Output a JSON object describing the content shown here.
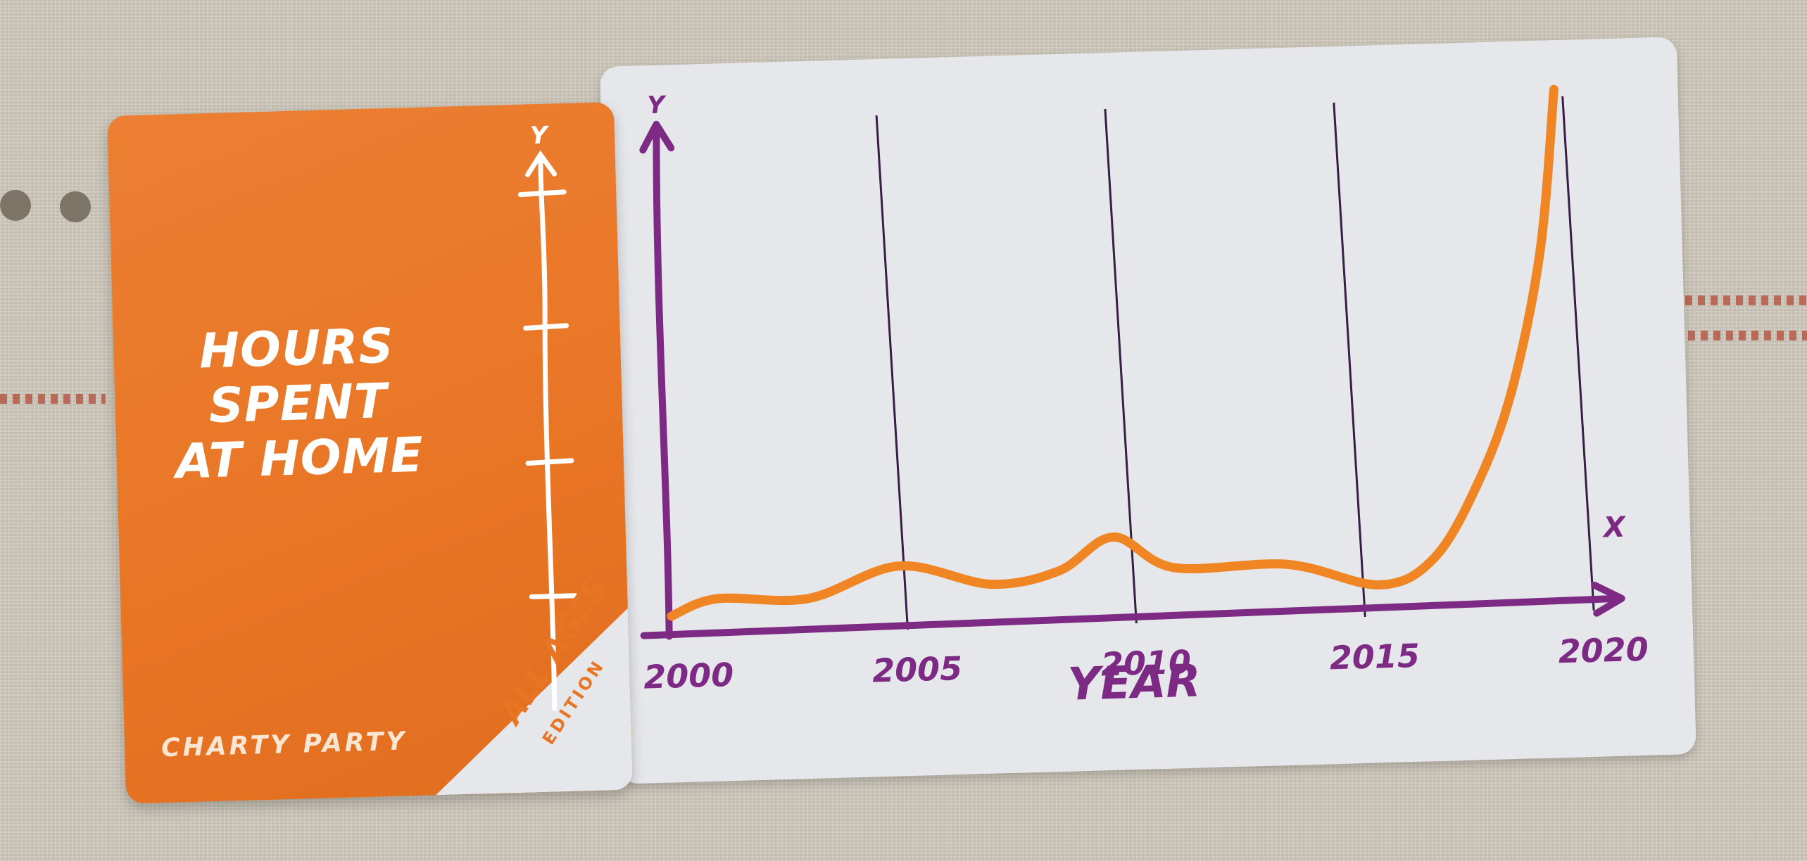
{
  "card": {
    "title_line1": "HOURS SPENT",
    "title_line2": "AT HOME",
    "brand": "CHARTY PARTY",
    "edition_main": "ALL AGES",
    "edition_sub": "EDITION",
    "axis_letter": "Y"
  },
  "chart_data": {
    "type": "line",
    "xlabel": "YEAR",
    "ylabel": "Y",
    "x_axis_letter": "X",
    "ticks": [
      "2000",
      "2005",
      "2010",
      "2015",
      "2020"
    ],
    "series": [
      {
        "x": [
          2000,
          2001,
          2003,
          2005,
          2007,
          2008.5,
          2009.7,
          2011,
          2013.5,
          2015.5,
          2016.7,
          2017.7,
          2018.5,
          2019.2,
          2019.6
        ],
        "values": [
          0.2,
          0.9,
          0.8,
          2.1,
          1.2,
          1.7,
          3.1,
          1.7,
          1.7,
          0.7,
          1.8,
          5.0,
          9.0,
          15.0,
          22.0
        ]
      }
    ],
    "xlim": [
      2000,
      2020
    ],
    "ylim": [
      0,
      22
    ],
    "grid": true,
    "colors": {
      "line": "#ef8523",
      "axis": "#7c2a83",
      "grid": "#3a1d46"
    }
  },
  "colors": {
    "card_orange": "#e87524",
    "card_white": "#e6e7ea",
    "purple": "#7c2a83"
  }
}
